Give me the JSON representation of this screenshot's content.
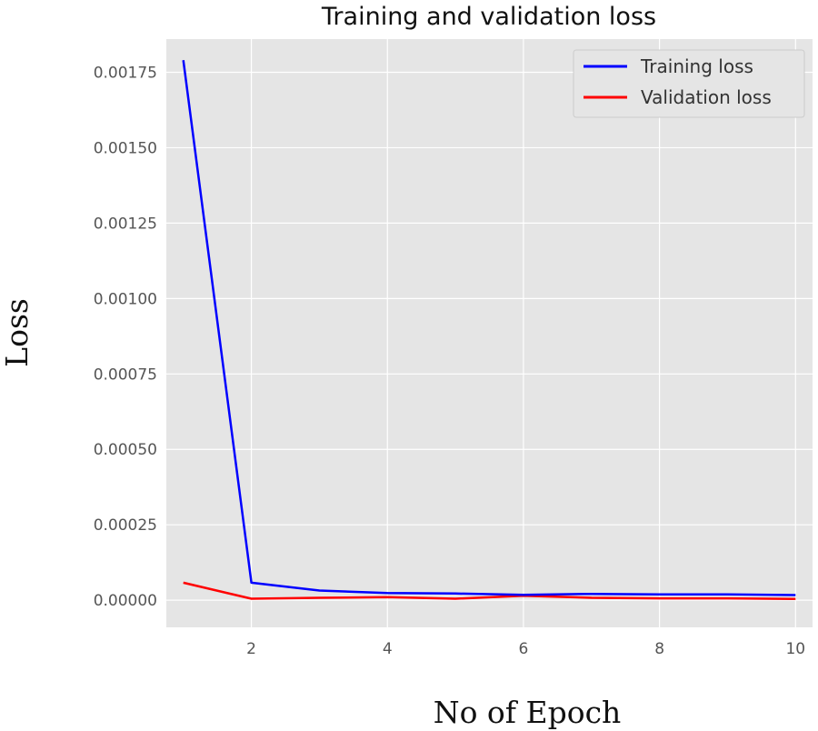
{
  "chart_data": {
    "type": "line",
    "title": "Training and validation loss",
    "xlabel": "No of Epoch",
    "ylabel": "Loss",
    "xlim": [
      0.75,
      10.25
    ],
    "ylim": [
      -9e-05,
      0.00186
    ],
    "xticks": [
      2,
      4,
      6,
      8,
      10
    ],
    "xtick_labels": [
      "2",
      "4",
      "6",
      "8",
      "10"
    ],
    "yticks": [
      0,
      0.00025,
      0.0005,
      0.00075,
      0.001,
      0.00125,
      0.0015,
      0.00175
    ],
    "ytick_labels": [
      "0.00000",
      "0.00025",
      "0.00050",
      "0.00075",
      "0.00100",
      "0.00125",
      "0.00150",
      "0.00175"
    ],
    "grid": true,
    "legend_position": "top-right",
    "x": [
      1,
      2,
      3,
      4,
      5,
      6,
      7,
      8,
      9,
      10
    ],
    "series": [
      {
        "name": "Training loss",
        "color": "#0000ff",
        "values": [
          0.00179,
          5.8e-05,
          3.2e-05,
          2.4e-05,
          2.2e-05,
          1.8e-05,
          2.1e-05,
          1.9e-05,
          1.9e-05,
          1.7e-05
        ]
      },
      {
        "name": "Validation loss",
        "color": "#ff0000",
        "values": [
          5.8e-05,
          5e-06,
          8e-06,
          1e-05,
          5e-06,
          1.5e-05,
          8e-06,
          6e-06,
          6e-06,
          4e-06
        ]
      }
    ]
  },
  "colors": {
    "plot_background": "#e5e5e5",
    "grid": "#ffffff"
  }
}
